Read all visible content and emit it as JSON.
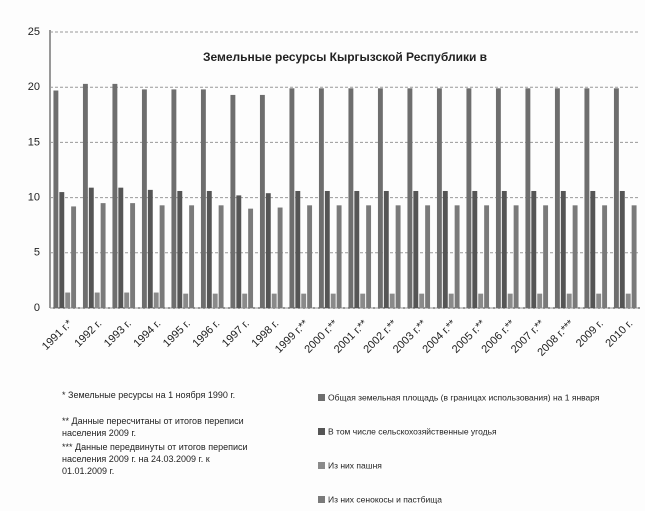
{
  "chart_data": {
    "type": "bar",
    "title": "Земельные ресурсы Кыргызской Республики в",
    "categories": [
      "1991 г.*",
      "1992 г.",
      "1993 г.",
      "1994 г.",
      "1995 г.",
      "1996 г.",
      "1997 г.",
      "1998 г.",
      "1999 г.**",
      "2000 г.**",
      "2001 г.**",
      "2002 г.**",
      "2003 г.**",
      "2004 г.**",
      "2005 г.**",
      "2006 г.**",
      "2007 г.**",
      "2008 г.***",
      "2009 г.",
      "2010 г."
    ],
    "series": [
      {
        "name": "Общая земельная площадь (в границах использования) на 1 января",
        "color": "#6e6e6e",
        "values": [
          19.7,
          20.3,
          20.3,
          19.8,
          19.8,
          19.8,
          19.3,
          19.3,
          19.9,
          19.9,
          19.9,
          19.9,
          19.9,
          19.9,
          19.9,
          19.9,
          19.9,
          19.9,
          19.9,
          19.9
        ]
      },
      {
        "name": "В том числе сельскохозяйственные угодья",
        "color": "#555555",
        "values": [
          10.5,
          10.9,
          10.9,
          10.7,
          10.6,
          10.6,
          10.2,
          10.4,
          10.6,
          10.6,
          10.6,
          10.6,
          10.6,
          10.6,
          10.6,
          10.6,
          10.6,
          10.6,
          10.6,
          10.6
        ]
      },
      {
        "name": "Из них пашня",
        "color": "#8a8a8a",
        "values": [
          1.4,
          1.4,
          1.4,
          1.4,
          1.3,
          1.3,
          1.3,
          1.3,
          1.3,
          1.3,
          1.3,
          1.3,
          1.3,
          1.3,
          1.3,
          1.3,
          1.3,
          1.3,
          1.3,
          1.3
        ]
      },
      {
        "name": "Из них сенокосы и пастбища",
        "color": "#7a7a7a",
        "values": [
          9.2,
          9.5,
          9.5,
          9.3,
          9.3,
          9.3,
          9.0,
          9.1,
          9.3,
          9.3,
          9.3,
          9.3,
          9.3,
          9.3,
          9.3,
          9.3,
          9.3,
          9.3,
          9.3,
          9.3
        ]
      }
    ],
    "ylim": [
      0,
      25
    ],
    "yticks": [
      0,
      5,
      10,
      15,
      20,
      25
    ],
    "grid": true,
    "notes": [
      "* Земельные ресурсы на 1 ноября 1990 г.",
      "** Данные пересчитаны от итогов переписи населения 2009 г.",
      "*** Данные передвинуты от итогов переписи населения 2009 г. на 24.03.2009 г. к 01.01.2009 г."
    ]
  }
}
